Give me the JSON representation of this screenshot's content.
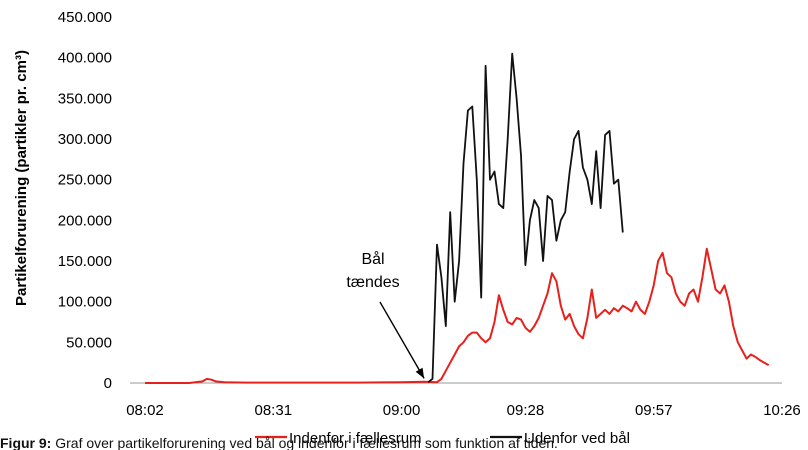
{
  "chart_data": {
    "type": "line",
    "title": "",
    "xlabel": "",
    "ylabel": "Partikelforurening (partikler pr. cm³)",
    "x_tick_labels": [
      "08:02",
      "08:31",
      "09:00",
      "09:28",
      "09:57",
      "10:26"
    ],
    "x_ticks_minutes": [
      482,
      511,
      540,
      568,
      597,
      626
    ],
    "xlim": [
      "08:02",
      "10:26"
    ],
    "y_tick_labels": [
      "0",
      "50.000",
      "100.000",
      "150.000",
      "200.000",
      "250.000",
      "300.000",
      "350.000",
      "400.000",
      "450.000"
    ],
    "y_ticks": [
      0,
      50000,
      100000,
      150000,
      200000,
      250000,
      300000,
      350000,
      400000,
      450000
    ],
    "ylim": [
      0,
      450000
    ],
    "grid": false,
    "legend_position": "bottom",
    "series": [
      {
        "name": "Indenfor i fællesrum",
        "color": "#e8201c",
        "x": [
          "08:02",
          "08:07",
          "08:12",
          "08:15",
          "08:16",
          "08:17",
          "08:18",
          "08:20",
          "08:25",
          "08:30",
          "08:40",
          "08:50",
          "09:00",
          "09:05",
          "09:08",
          "09:09",
          "09:10",
          "09:11",
          "09:12",
          "09:13",
          "09:14",
          "09:15",
          "09:16",
          "09:17",
          "09:18",
          "09:19",
          "09:20",
          "09:21",
          "09:22",
          "09:23",
          "09:24",
          "09:25",
          "09:26",
          "09:27",
          "09:28",
          "09:29",
          "09:30",
          "09:31",
          "09:32",
          "09:33",
          "09:34",
          "09:35",
          "09:36",
          "09:37",
          "09:38",
          "09:39",
          "09:40",
          "09:41",
          "09:42",
          "09:43",
          "09:44",
          "09:45",
          "09:46",
          "09:47",
          "09:48",
          "09:49",
          "09:50",
          "09:51",
          "09:52",
          "09:53",
          "09:54",
          "09:55",
          "09:56",
          "09:57",
          "09:58",
          "09:59",
          "10:00",
          "10:01",
          "10:02",
          "10:03",
          "10:04",
          "10:05",
          "10:06",
          "10:07",
          "10:08",
          "10:09",
          "10:10",
          "10:11",
          "10:12",
          "10:13",
          "10:14",
          "10:15",
          "10:16",
          "10:17",
          "10:18"
        ],
        "y": [
          0,
          0,
          0,
          2000,
          5000,
          4000,
          2000,
          1000,
          500,
          500,
          500,
          500,
          1000,
          1500,
          1000,
          5000,
          15000,
          25000,
          35000,
          45000,
          50000,
          58000,
          62000,
          62000,
          55000,
          50000,
          55000,
          75000,
          108000,
          90000,
          75000,
          72000,
          80000,
          78000,
          68000,
          63000,
          70000,
          80000,
          95000,
          110000,
          135000,
          125000,
          95000,
          78000,
          85000,
          70000,
          60000,
          55000,
          80000,
          115000,
          80000,
          85000,
          90000,
          85000,
          92000,
          88000,
          95000,
          92000,
          88000,
          100000,
          90000,
          85000,
          100000,
          120000,
          150000,
          160000,
          135000,
          130000,
          110000,
          100000,
          95000,
          110000,
          115000,
          100000,
          130000,
          165000,
          140000,
          115000,
          110000,
          120000,
          100000,
          70000,
          50000,
          40000,
          30000
        ],
        "extra_x": [
          "10:19",
          "10:20",
          "10:21",
          "10:22",
          "10:23"
        ],
        "extra_y": [
          35000,
          32000,
          28000,
          25000,
          22000
        ]
      },
      {
        "name": "Udenfor ved bål",
        "color": "#111111",
        "x": [
          "09:06",
          "09:07",
          "09:08",
          "09:09",
          "09:10",
          "09:11",
          "09:12",
          "09:13",
          "09:14",
          "09:15",
          "09:16",
          "09:17",
          "09:18",
          "09:19",
          "09:20",
          "09:21",
          "09:22",
          "09:23",
          "09:24",
          "09:25",
          "09:26",
          "09:27",
          "09:28",
          "09:29",
          "09:30",
          "09:31",
          "09:32",
          "09:33",
          "09:34",
          "09:35",
          "09:36",
          "09:37",
          "09:38",
          "09:39",
          "09:40",
          "09:41",
          "09:42",
          "09:43",
          "09:44",
          "09:45",
          "09:46",
          "09:47",
          "09:48",
          "09:49",
          "09:50"
        ],
        "y": [
          1000,
          5000,
          170000,
          130000,
          70000,
          210000,
          100000,
          150000,
          270000,
          335000,
          340000,
          250000,
          105000,
          390000,
          250000,
          260000,
          220000,
          215000,
          300000,
          405000,
          350000,
          280000,
          145000,
          200000,
          225000,
          215000,
          150000,
          230000,
          225000,
          175000,
          200000,
          210000,
          260000,
          300000,
          310000,
          265000,
          250000,
          220000,
          285000,
          215000,
          305000,
          310000,
          245000,
          250000,
          185000
        ]
      }
    ],
    "annotations": [
      {
        "text": "Bål tændes",
        "line1": "Bål",
        "line2": "tændes",
        "points_to_x": "09:06",
        "points_to_y": 2000
      }
    ]
  },
  "caption": {
    "label": "Figur 9:",
    "text": "Graf over partikelforurening ved bål og indenfor i fællesrum som funktion af tiden."
  }
}
